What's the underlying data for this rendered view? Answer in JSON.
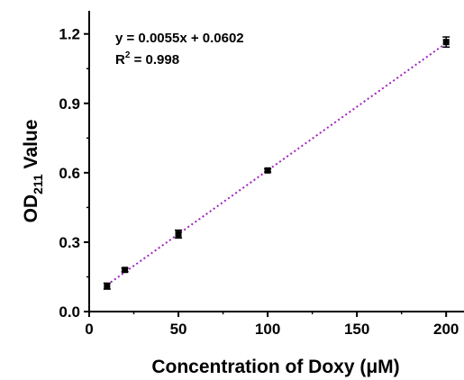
{
  "chart_data": {
    "type": "scatter",
    "xlabel": "Concentration of Doxy (μM)",
    "ylabel": {
      "main": "OD",
      "sub": "211",
      "rest": " Value"
    },
    "xlim": [
      0,
      210
    ],
    "ylim": [
      0,
      1.3
    ],
    "xticks": [
      0,
      50,
      100,
      150,
      200
    ],
    "yticks": [
      0.0,
      0.3,
      0.6,
      0.9,
      1.2
    ],
    "xtick_labels": [
      "0",
      "50",
      "100",
      "150",
      "200"
    ],
    "ytick_labels": [
      "0.0",
      "0.3",
      "0.6",
      "0.9",
      "1.2"
    ],
    "grid": false,
    "series": [
      {
        "x": [
          10,
          20,
          50,
          100,
          200
        ],
        "y": [
          0.11,
          0.18,
          0.335,
          0.61,
          1.165
        ],
        "yerr": [
          0.013,
          0.008,
          0.017,
          0.007,
          0.022
        ],
        "color": "#000000"
      }
    ],
    "fit": {
      "slope": 0.0055,
      "intercept": 0.0602,
      "x_range": [
        10,
        200
      ],
      "color": "#a020c0",
      "style": "dotted"
    },
    "annotations": {
      "equation": "y = 0.0055x + 0.0602",
      "r2_prefix": "R",
      "r2_sup": "2",
      "r2_rest": " = 0.998"
    }
  }
}
